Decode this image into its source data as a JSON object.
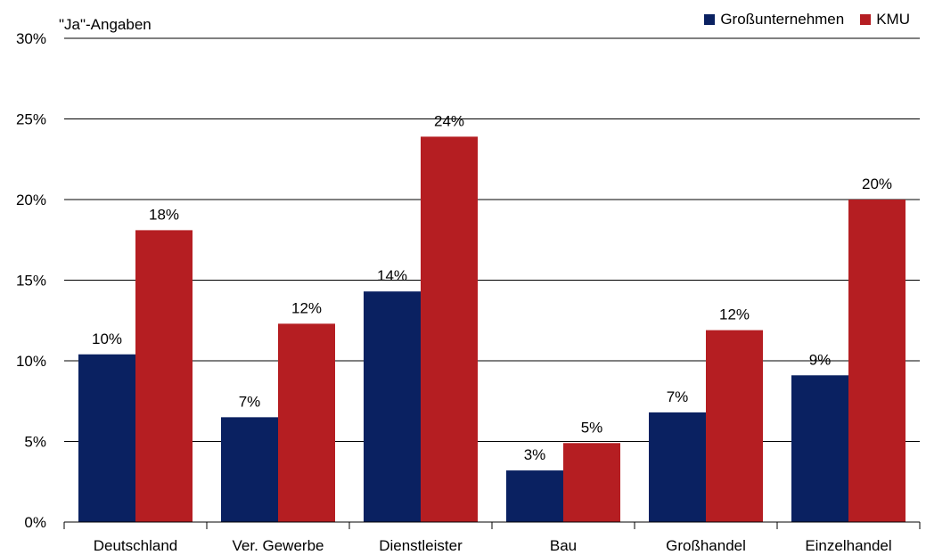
{
  "chart_data": {
    "type": "bar",
    "title": "",
    "subtitle": "\"Ja\"-Angaben",
    "xlabel": "",
    "ylabel": "",
    "ylim": [
      0,
      30
    ],
    "yticks": [
      "0%",
      "5%",
      "10%",
      "15%",
      "20%",
      "25%",
      "30%"
    ],
    "ytick_values": [
      0,
      5,
      10,
      15,
      20,
      25,
      30
    ],
    "grid": true,
    "legend_position": "top-right",
    "categories": [
      "Deutschland",
      "Ver. Gewerbe",
      "Dienstleister",
      "Bau",
      "Großhandel",
      "Einzelhandel"
    ],
    "series": [
      {
        "name": "Großunternehmen",
        "color": "#0a2161",
        "values": [
          10.4,
          6.5,
          14.3,
          3.2,
          6.8,
          9.1
        ],
        "labels": [
          "10%",
          "7%",
          "14%",
          "3%",
          "7%",
          "9%"
        ]
      },
      {
        "name": "KMU",
        "color": "#b51e22",
        "values": [
          18.1,
          12.3,
          23.9,
          4.9,
          11.9,
          20.0
        ],
        "labels": [
          "18%",
          "12%",
          "24%",
          "5%",
          "12%",
          "20%"
        ]
      }
    ]
  }
}
